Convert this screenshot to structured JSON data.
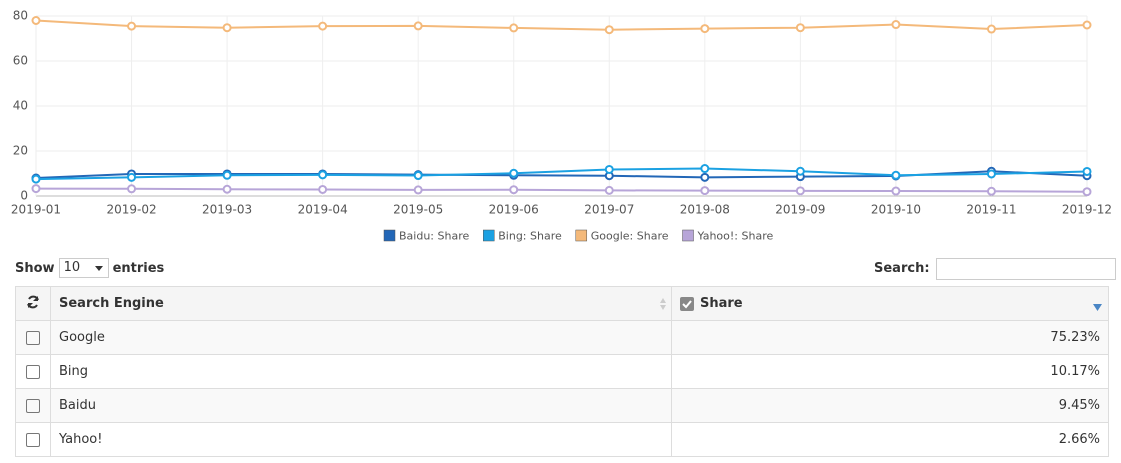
{
  "chart_data": {
    "type": "line",
    "categories": [
      "2019-01",
      "2019-02",
      "2019-03",
      "2019-04",
      "2019-05",
      "2019-06",
      "2019-07",
      "2019-08",
      "2019-09",
      "2019-10",
      "2019-11",
      "2019-12"
    ],
    "series": [
      {
        "name": "Baidu: Share",
        "color": "#2367b7",
        "values": [
          8,
          9.8,
          9.8,
          9.8,
          9.5,
          9.2,
          9.0,
          8.3,
          8.6,
          8.9,
          11,
          9
        ]
      },
      {
        "name": "Bing: Share",
        "color": "#1ba1e2",
        "values": [
          7.5,
          8.3,
          9.2,
          9.4,
          9.1,
          10.1,
          11.8,
          12.2,
          11,
          9.2,
          9.8,
          10.9
        ]
      },
      {
        "name": "Google: Share",
        "color": "#f4b97a",
        "values": [
          78,
          75.5,
          74.8,
          75.5,
          75.6,
          74.7,
          73.9,
          74.4,
          74.8,
          76.2,
          74.2,
          76
        ]
      },
      {
        "name": "Yahoo!: Share",
        "color": "#b7a5d8",
        "values": [
          3.3,
          3.2,
          3.0,
          2.9,
          2.7,
          2.8,
          2.5,
          2.4,
          2.3,
          2.2,
          2.1,
          1.9
        ]
      }
    ],
    "ylim": [
      0,
      80
    ],
    "yticks": [
      0,
      20,
      40,
      60,
      80
    ],
    "grid": true
  },
  "controls": {
    "show_label": "Show",
    "show_value": "10",
    "entries_label": "entries",
    "search_label": "Search:"
  },
  "table": {
    "headers": [
      "Search Engine",
      "Share"
    ],
    "rows": [
      [
        "Google",
        "75.23%"
      ],
      [
        "Bing",
        "10.17%"
      ],
      [
        "Baidu",
        "9.45%"
      ],
      [
        "Yahoo!",
        "2.66%"
      ]
    ]
  }
}
